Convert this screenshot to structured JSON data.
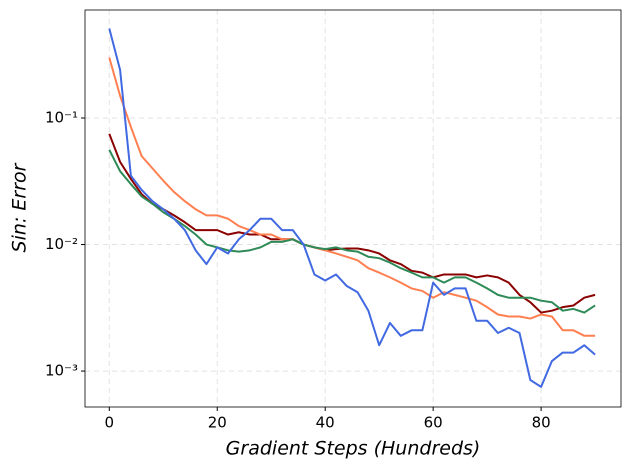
{
  "chart_data": {
    "type": "line",
    "x_label": "Gradient Steps (Hundreds)",
    "y_label": "Sin: Error",
    "y_scale": "log",
    "grid": true,
    "x": [
      0,
      2,
      4,
      6,
      8,
      10,
      12,
      14,
      16,
      18,
      20,
      22,
      24,
      26,
      28,
      30,
      32,
      34,
      36,
      38,
      40,
      42,
      44,
      46,
      48,
      50,
      52,
      54,
      56,
      58,
      60,
      62,
      64,
      66,
      68,
      70,
      72,
      74,
      76,
      78,
      80,
      82,
      84,
      86,
      88,
      90
    ],
    "series": [
      {
        "color": "#8b0000",
        "values": [
          0.075,
          0.045,
          0.033,
          0.025,
          0.021,
          0.019,
          0.017,
          0.015,
          0.013,
          0.013,
          0.013,
          0.012,
          0.0125,
          0.012,
          0.012,
          0.011,
          0.011,
          0.011,
          0.01,
          0.0095,
          0.009,
          0.0092,
          0.0093,
          0.0093,
          0.009,
          0.0085,
          0.0075,
          0.007,
          0.0062,
          0.006,
          0.0055,
          0.0058,
          0.0058,
          0.0058,
          0.0055,
          0.0057,
          0.0055,
          0.005,
          0.004,
          0.0035,
          0.0029,
          0.003,
          0.0032,
          0.0033,
          0.0038,
          0.004
        ]
      },
      {
        "color": "#ff7f50",
        "values": [
          0.3,
          0.15,
          0.085,
          0.05,
          0.04,
          0.032,
          0.026,
          0.022,
          0.019,
          0.017,
          0.017,
          0.016,
          0.014,
          0.013,
          0.012,
          0.012,
          0.011,
          0.011,
          0.01,
          0.0095,
          0.009,
          0.0085,
          0.008,
          0.0075,
          0.0065,
          0.006,
          0.0055,
          0.005,
          0.0045,
          0.0043,
          0.0038,
          0.0042,
          0.004,
          0.0038,
          0.0036,
          0.0032,
          0.0028,
          0.0027,
          0.0027,
          0.0026,
          0.0028,
          0.0027,
          0.0021,
          0.0021,
          0.0019,
          0.0019
        ]
      },
      {
        "color": "#2e8b57",
        "values": [
          0.056,
          0.038,
          0.03,
          0.024,
          0.021,
          0.018,
          0.016,
          0.014,
          0.012,
          0.01,
          0.0095,
          0.009,
          0.0088,
          0.009,
          0.0095,
          0.0105,
          0.0105,
          0.011,
          0.01,
          0.0095,
          0.0092,
          0.0095,
          0.009,
          0.0088,
          0.008,
          0.0078,
          0.0072,
          0.0065,
          0.006,
          0.0055,
          0.0055,
          0.005,
          0.0055,
          0.0055,
          0.005,
          0.0045,
          0.004,
          0.0038,
          0.0038,
          0.0038,
          0.0036,
          0.0035,
          0.003,
          0.0031,
          0.0029,
          0.0033
        ]
      },
      {
        "color": "#4169e1",
        "values": [
          0.51,
          0.24,
          0.035,
          0.027,
          0.022,
          0.019,
          0.016,
          0.013,
          0.009,
          0.007,
          0.0095,
          0.0085,
          0.011,
          0.013,
          0.016,
          0.016,
          0.013,
          0.013,
          0.01,
          0.0058,
          0.0052,
          0.0058,
          0.0047,
          0.0042,
          0.003,
          0.0016,
          0.0024,
          0.0019,
          0.0021,
          0.0021,
          0.005,
          0.004,
          0.0045,
          0.0045,
          0.0025,
          0.0025,
          0.002,
          0.0022,
          0.002,
          0.00085,
          0.00075,
          0.0012,
          0.0014,
          0.0014,
          0.0016,
          0.00135
        ]
      }
    ],
    "xlim": [
      -4.5,
      94.8
    ],
    "xticks": [
      0,
      20,
      40,
      60,
      80
    ],
    "ylim": [
      0.00052,
      0.714
    ],
    "yticks": [
      {
        "value": 0.001,
        "label": "10⁻³"
      },
      {
        "value": 0.01,
        "label": "10⁻²"
      },
      {
        "value": 0.1,
        "label": "10⁻¹"
      }
    ]
  }
}
